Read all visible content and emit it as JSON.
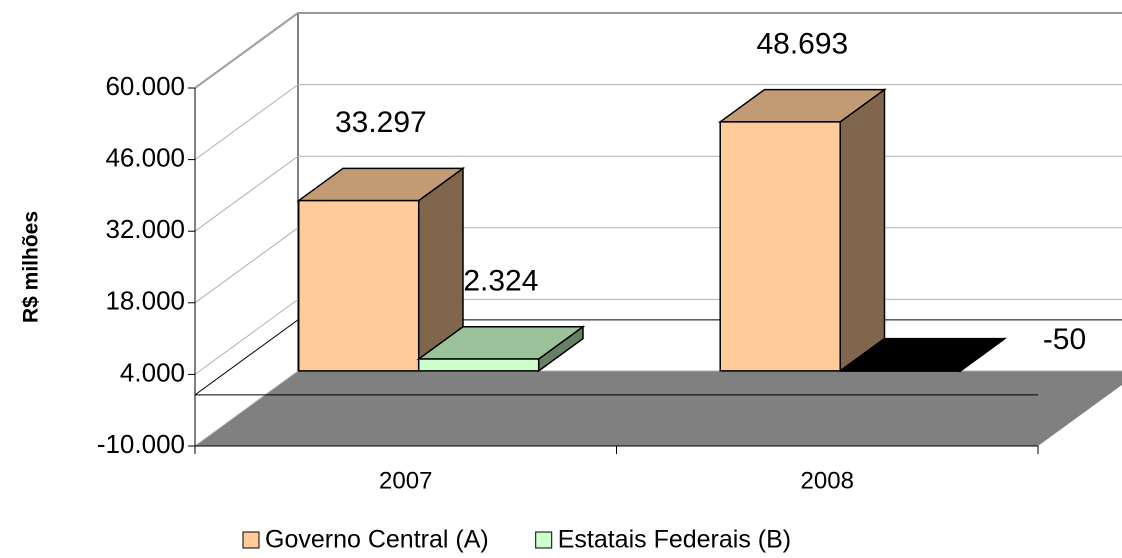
{
  "chart_data": {
    "type": "bar3d",
    "y_label": "R$ milhões",
    "categories": [
      "2007",
      "2008"
    ],
    "series": [
      {
        "name": "Governo Central (A)",
        "color": "#ffcc99",
        "values": [
          33297,
          48693
        ],
        "value_labels": [
          "33.297",
          "48.693"
        ]
      },
      {
        "name": "Estatais Federais (B)",
        "color": "#ccffcc",
        "values": [
          2324,
          -50
        ],
        "value_labels": [
          "2.324",
          "-50"
        ]
      }
    ],
    "ylim": [
      -10000,
      60000
    ],
    "yticks": [
      {
        "value": -10000,
        "label": "-10.000"
      },
      {
        "value": 4000,
        "label": "4.000"
      },
      {
        "value": 18000,
        "label": "18.000"
      },
      {
        "value": 32000,
        "label": "32.000"
      },
      {
        "value": 46000,
        "label": "46.000"
      },
      {
        "value": 60000,
        "label": "60.000"
      }
    ],
    "grid": true,
    "legend": "bottom"
  }
}
